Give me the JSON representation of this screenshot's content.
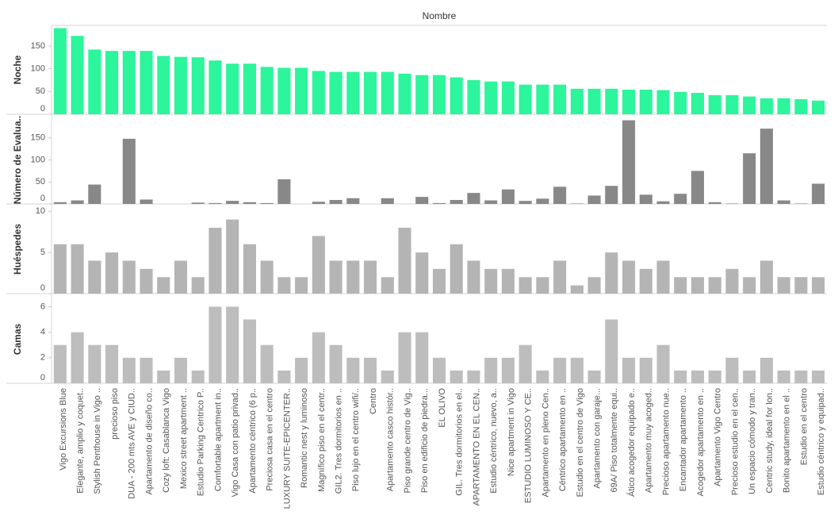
{
  "chart_data": {
    "type": "bar",
    "title": "Nombre",
    "categories": [
      "Vigo Excursions Blue",
      "Elegante, amplio y coquet..",
      "Stylish Penthouse in Vigo ..",
      "precioso piso",
      "DUA - 200 mts AVE y CIUD..",
      "Apartamento de diseño co..",
      "Cozy loft: Casablanca Vigo",
      "Mexico street apartment ..",
      "Estudio Parking Centrico P..",
      "Comfortable apartment in..",
      "Vigo Casa con patio privad..",
      "Apartamento céntrico (6 p..",
      "Preciosa casa en el centro",
      "LUXURY SUITE-EPICENTER..",
      "Romantic nest y luminoso",
      "Magnífico piso en el centr..",
      "GIL2. Tres dormitorios en ..",
      "Piso lujo en el centro wifi/..",
      "Centro",
      "Apartamento casco histór..",
      "Piso grande centro de Vig..",
      "Piso en edificio de piedra...",
      "EL OLIVO",
      "GIL. Tres dormitorios en el..",
      "APARTAMENTO EN EL CEN..",
      "Estudio céntrico, nuevo, a..",
      "Nice apartment in Vigo",
      "ESTUDIO LUMINOSO Y CE..",
      "Apartamento en pleno Cen..",
      "Céntrico apartamento en ..",
      "Estudio en el centro de Vigo",
      "Apartamento con garaje...",
      "69A/ Piso totalmente equi..",
      "Ático acogedor equipado e..",
      "Apartamento muy acoged..",
      "Precioso apartamento nue..",
      "Encantador apartamento ..",
      "Acogedor apartamento en ..",
      "Apartamento Vigo Centro",
      "Precioso estudio en el cen..",
      "Un espacio cómodo y tran..",
      "Centric study, ideal for lon..",
      "Bonito apartamento en el ..",
      "Estudio en el centro",
      "Estudio céntrico y equipad.."
    ],
    "series": [
      {
        "name": "Noche",
        "color": "#2cf59b",
        "ylim": [
          0,
          195
        ],
        "yticks": [
          0,
          50,
          100,
          150
        ],
        "values": [
          189,
          172,
          142,
          139,
          139,
          139,
          128,
          126,
          125,
          118,
          111,
          111,
          104,
          102,
          102,
          95,
          93,
          93,
          93,
          93,
          89,
          86,
          86,
          81,
          75,
          72,
          72,
          65,
          65,
          65,
          56,
          56,
          56,
          54,
          54,
          53,
          49,
          47,
          42,
          42,
          39,
          35,
          35,
          33,
          30
        ]
      },
      {
        "name": "Número de Evalua..",
        "color": "#888888",
        "ylim": [
          0,
          200
        ],
        "yticks": [
          0,
          50,
          100,
          150
        ],
        "values": [
          4,
          8,
          44,
          0,
          148,
          10,
          0,
          0,
          3,
          2,
          7,
          4,
          2,
          56,
          0,
          5,
          9,
          13,
          0,
          13,
          0,
          16,
          2,
          9,
          25,
          8,
          33,
          7,
          12,
          39,
          1,
          19,
          41,
          190,
          21,
          6,
          23,
          75,
          4,
          1,
          115,
          171,
          8,
          1,
          46
        ]
      },
      {
        "name": "Huéspedes",
        "color": "#b4b4b4",
        "ylim": [
          0,
          10.8
        ],
        "yticks": [
          0,
          5,
          10
        ],
        "values": [
          6,
          6,
          4,
          5,
          4,
          3,
          2,
          4,
          2,
          8,
          9,
          6,
          4,
          2,
          2,
          7,
          4,
          4,
          4,
          2,
          8,
          5,
          3,
          6,
          4,
          3,
          3,
          2,
          2,
          4,
          1,
          2,
          5,
          4,
          3,
          4,
          2,
          2,
          2,
          3,
          2,
          4,
          2,
          2,
          2
        ]
      },
      {
        "name": "Camas",
        "color": "#bdbdbd",
        "ylim": [
          0,
          6.9
        ],
        "yticks": [
          0,
          2,
          4,
          6
        ],
        "values": [
          3,
          4,
          3,
          3,
          2,
          2,
          1,
          2,
          1,
          6,
          6,
          5,
          3,
          1,
          2,
          4,
          3,
          2,
          2,
          1,
          4,
          4,
          2,
          1,
          1,
          2,
          2,
          3,
          1,
          2,
          2,
          1,
          5,
          2,
          2,
          3,
          1,
          1,
          1,
          2,
          1,
          2,
          1,
          1,
          1
        ]
      }
    ]
  }
}
